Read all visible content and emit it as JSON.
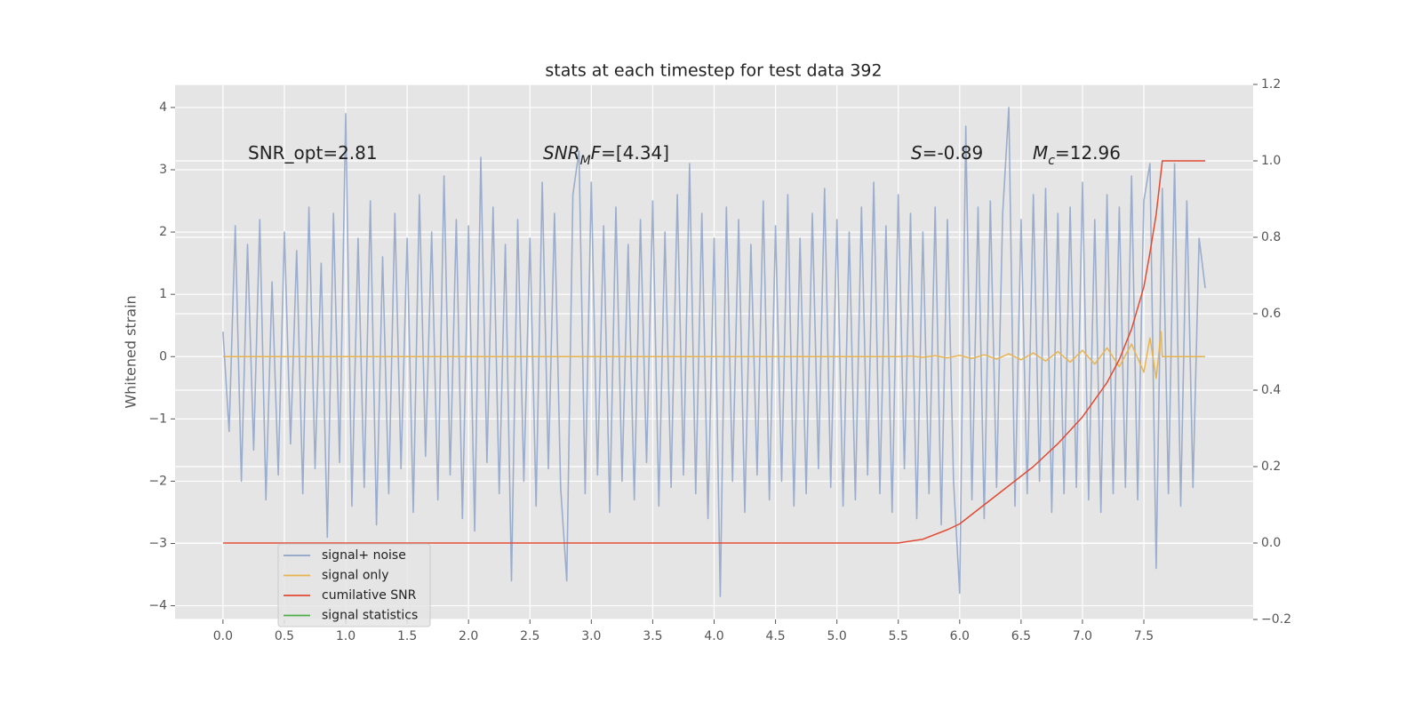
{
  "chart_data": {
    "type": "line",
    "title": "stats at each timestep for test data 392",
    "y_label": "Whitened strain",
    "xlim": [
      -0.39,
      8.39
    ],
    "ylim": [
      -4.22,
      4.37
    ],
    "y2lim": [
      -0.2,
      1.2
    ],
    "xticks": [
      {
        "value": 0,
        "label": "0.0"
      },
      0.5,
      {
        "value": 1,
        "label": "1.0"
      },
      1.5,
      {
        "value": 2,
        "label": "2.0"
      },
      2.5,
      {
        "value": 3,
        "label": "3.0"
      },
      3.5,
      {
        "value": 4,
        "label": "4.0"
      },
      4.5,
      {
        "value": 5,
        "label": "5.0"
      },
      5.5,
      {
        "value": 6,
        "label": "6.0"
      },
      6.5,
      {
        "value": 7,
        "label": "7.0"
      },
      7.5
    ],
    "yticks": [
      {
        "value": -4,
        "label": "−4"
      },
      {
        "value": -3,
        "label": "−3"
      },
      {
        "value": -2,
        "label": "−2"
      },
      {
        "value": -1,
        "label": "−1"
      },
      0,
      1,
      2,
      3,
      4
    ],
    "y2ticks": [
      {
        "value": -0.2,
        "label": "−0.2"
      },
      {
        "value": 0,
        "label": "0.0"
      },
      0.2,
      0.4,
      0.6,
      0.8,
      {
        "value": 1,
        "label": "1.0"
      },
      {
        "value": 1.2,
        "label": "1.2"
      }
    ],
    "grid": true,
    "legend": "lower left",
    "annotations": [
      {
        "segments": [
          {
            "text": "SNR_opt=2.81"
          }
        ]
      },
      {
        "segments": [
          {
            "text": "SNR",
            "italic": true
          },
          {
            "text": "M",
            "italic": true,
            "sub": true
          },
          {
            "text": "F",
            "italic": true
          },
          {
            "text": "=[4.34]"
          }
        ]
      },
      {
        "segments": [
          {
            "text": "S",
            "italic": true
          },
          {
            "text": "=-0.89"
          }
        ]
      },
      {
        "segments": [
          {
            "text": "M",
            "italic": true
          },
          {
            "text": "c",
            "italic": true,
            "sub": true
          },
          {
            "text": "=12.96"
          }
        ]
      }
    ],
    "series": [
      {
        "name": "signal+ noise",
        "color": "#8ea3c9",
        "axis": "y",
        "x": [
          0,
          0.05,
          0.1,
          0.15,
          0.2,
          0.25,
          0.3,
          0.35,
          0.4,
          0.45,
          0.5,
          0.55,
          0.6,
          0.65,
          0.7,
          0.75,
          0.8,
          0.85,
          0.9,
          0.95,
          1,
          1.05,
          1.1,
          1.15,
          1.2,
          1.25,
          1.3,
          1.35,
          1.4,
          1.45,
          1.5,
          1.55,
          1.6,
          1.65,
          1.7,
          1.75,
          1.8,
          1.85,
          1.9,
          1.95,
          2,
          2.05,
          2.1,
          2.15,
          2.2,
          2.25,
          2.3,
          2.35,
          2.4,
          2.45,
          2.5,
          2.55,
          2.6,
          2.65,
          2.7,
          2.75,
          2.8,
          2.85,
          2.9,
          2.95,
          3,
          3.05,
          3.1,
          3.15,
          3.2,
          3.25,
          3.3,
          3.35,
          3.4,
          3.45,
          3.5,
          3.55,
          3.6,
          3.65,
          3.7,
          3.75,
          3.8,
          3.85,
          3.9,
          3.95,
          4,
          4.05,
          4.1,
          4.15,
          4.2,
          4.25,
          4.3,
          4.35,
          4.4,
          4.45,
          4.5,
          4.55,
          4.6,
          4.65,
          4.7,
          4.75,
          4.8,
          4.85,
          4.9,
          4.95,
          5,
          5.05,
          5.1,
          5.15,
          5.2,
          5.25,
          5.3,
          5.35,
          5.4,
          5.45,
          5.5,
          5.55,
          5.6,
          5.65,
          5.7,
          5.75,
          5.8,
          5.85,
          5.9,
          5.95,
          6,
          6.05,
          6.1,
          6.15,
          6.2,
          6.25,
          6.3,
          6.35,
          6.4,
          6.45,
          6.5,
          6.55,
          6.6,
          6.65,
          6.7,
          6.75,
          6.8,
          6.85,
          6.9,
          6.95,
          7,
          7.05,
          7.1,
          7.15,
          7.2,
          7.25,
          7.3,
          7.35,
          7.4,
          7.45,
          7.5,
          7.55,
          7.6,
          7.65,
          7.7,
          7.75,
          7.8,
          7.85,
          7.9,
          7.95,
          8
        ],
        "values": [
          0.4,
          -1.2,
          2.1,
          -2.0,
          1.8,
          -1.5,
          2.2,
          -2.3,
          1.2,
          -1.9,
          2.0,
          -1.4,
          1.7,
          -2.2,
          2.4,
          -1.8,
          1.5,
          -2.9,
          2.3,
          -1.7,
          3.9,
          -2.4,
          1.9,
          -2.1,
          2.5,
          -2.7,
          1.6,
          -2.2,
          2.3,
          -1.8,
          1.9,
          -2.5,
          2.6,
          -1.6,
          2.0,
          -2.3,
          2.9,
          -1.9,
          2.2,
          -2.6,
          2.1,
          -2.8,
          3.2,
          -1.7,
          2.4,
          -2.2,
          1.8,
          -3.6,
          2.2,
          -2.0,
          1.9,
          -2.4,
          2.8,
          -1.8,
          2.3,
          -2.1,
          -3.6,
          2.6,
          3.3,
          -2.2,
          2.8,
          -1.9,
          2.1,
          -2.5,
          2.4,
          -2.0,
          1.8,
          -2.3,
          2.2,
          -1.7,
          2.5,
          -2.4,
          2.0,
          -2.1,
          2.6,
          -1.9,
          3.1,
          -2.2,
          2.3,
          -2.6,
          1.9,
          -3.85,
          2.4,
          -2.0,
          2.2,
          -2.5,
          1.8,
          -1.9,
          2.5,
          -2.3,
          2.1,
          -2.0,
          2.6,
          -2.4,
          1.9,
          -2.2,
          2.3,
          -1.8,
          2.7,
          -2.1,
          2.2,
          -2.4,
          2.0,
          -2.3,
          2.4,
          -1.9,
          2.8,
          -2.2,
          2.1,
          -2.5,
          2.6,
          -1.8,
          2.3,
          -2.6,
          2.0,
          -2.2,
          2.4,
          -2.7,
          2.2,
          -2.0,
          -3.8,
          3.7,
          -2.3,
          2.4,
          -2.6,
          2.5,
          -2.1,
          2.3,
          4.0,
          -2.4,
          2.2,
          -2.2,
          2.6,
          -2.0,
          2.7,
          -2.5,
          2.3,
          -2.2,
          2.4,
          -2.1,
          2.8,
          -2.3,
          2.2,
          -2.5,
          2.6,
          -2.2,
          2.4,
          -2.1,
          2.9,
          -2.3,
          2.5,
          3.1,
          -3.4,
          2.7,
          -2.2,
          3.1,
          -2.4,
          2.5,
          -2.1,
          1.9,
          1.1
        ]
      },
      {
        "name": "signal only",
        "color": "#e8b44f",
        "axis": "y",
        "x": [
          0,
          5.5,
          5.6,
          5.7,
          5.8,
          5.9,
          6.0,
          6.1,
          6.2,
          6.3,
          6.4,
          6.5,
          6.6,
          6.7,
          6.8,
          6.9,
          7.0,
          7.1,
          7.2,
          7.3,
          7.4,
          7.5,
          7.55,
          7.6,
          7.64,
          7.65,
          8.0
        ],
        "values": [
          0,
          0,
          0.01,
          -0.01,
          0.015,
          -0.02,
          0.02,
          -0.03,
          0.03,
          -0.04,
          0.045,
          -0.05,
          0.06,
          -0.07,
          0.08,
          -0.09,
          0.1,
          -0.12,
          0.14,
          -0.16,
          0.2,
          -0.25,
          0.3,
          -0.35,
          0.4,
          0,
          0
        ]
      },
      {
        "name": "cumilative SNR",
        "color": "#e24a33",
        "axis": "y2",
        "x": [
          0,
          5.5,
          5.7,
          5.9,
          6.0,
          6.2,
          6.4,
          6.6,
          6.8,
          7.0,
          7.2,
          7.3,
          7.4,
          7.5,
          7.55,
          7.6,
          7.65,
          8.0
        ],
        "values": [
          0,
          0,
          0.01,
          0.035,
          0.05,
          0.1,
          0.15,
          0.2,
          0.26,
          0.33,
          0.42,
          0.48,
          0.56,
          0.67,
          0.76,
          0.86,
          1.0,
          1.0
        ]
      },
      {
        "name": "signal statistics",
        "color": "#4daf4a",
        "axis": "y",
        "x": [],
        "values": []
      }
    ]
  }
}
